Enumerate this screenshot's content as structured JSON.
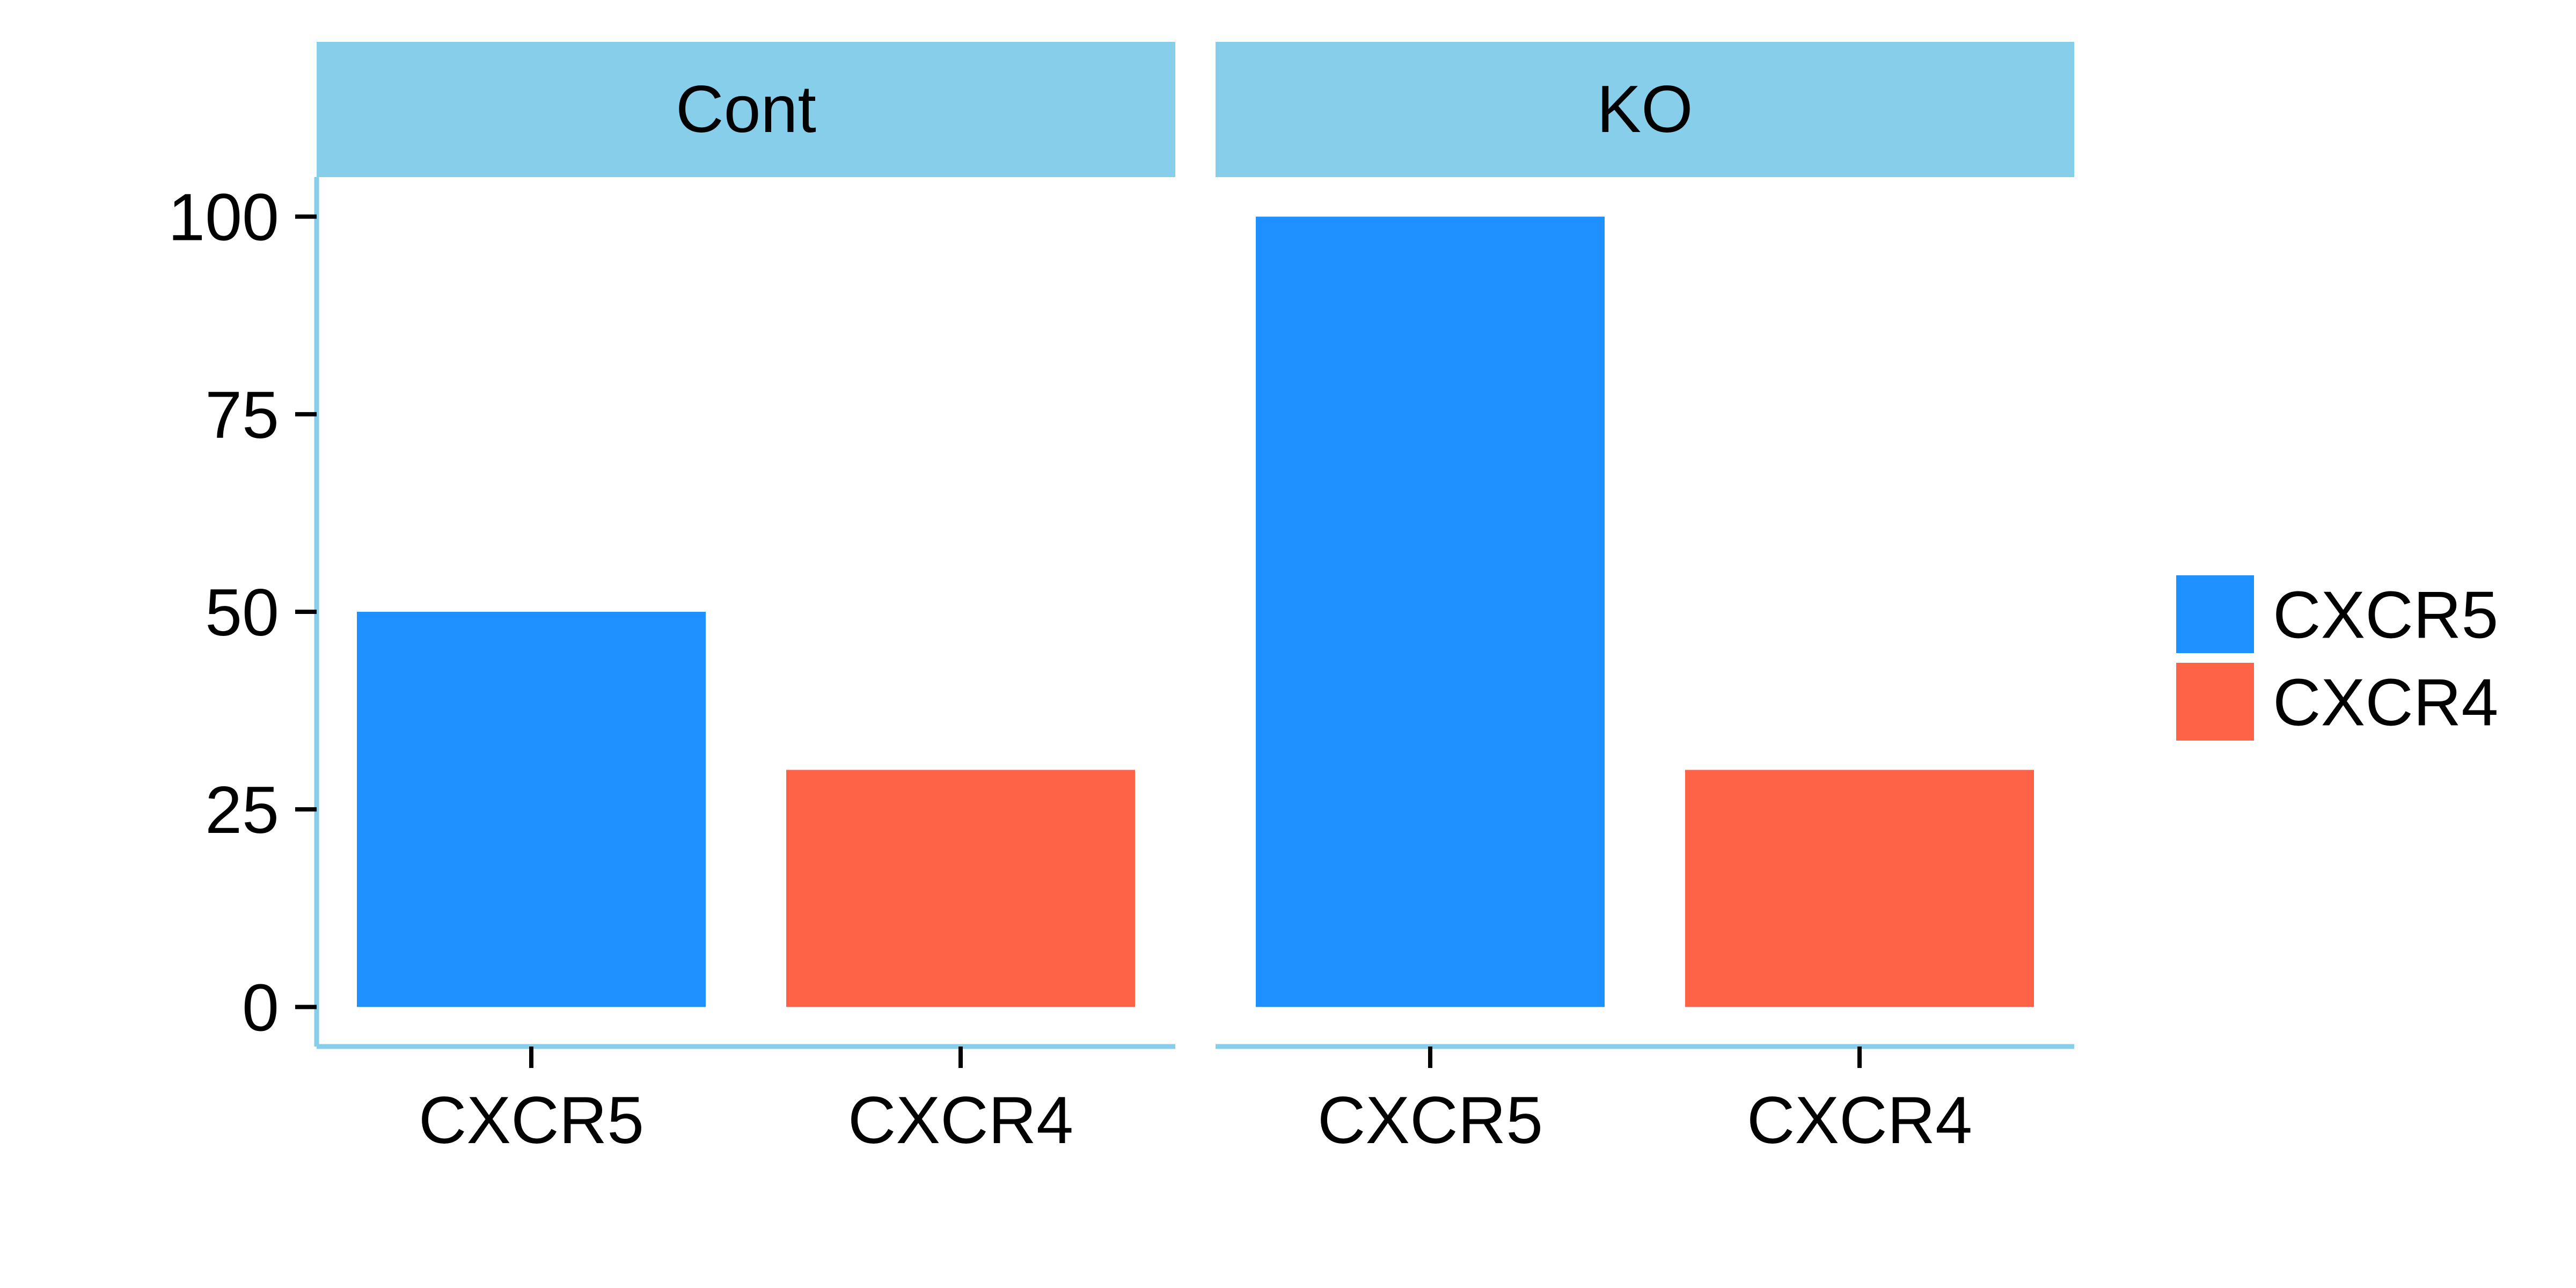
{
  "chart_data": {
    "type": "bar",
    "facets": [
      {
        "label": "Cont",
        "categories": [
          "CXCR5",
          "CXCR4"
        ],
        "values": [
          50,
          30
        ]
      },
      {
        "label": "KO",
        "categories": [
          "CXCR5",
          "CXCR4"
        ],
        "values": [
          100,
          30
        ]
      }
    ],
    "series": [
      {
        "name": "CXCR5",
        "color": "#1E90FF"
      },
      {
        "name": "CXCR4",
        "color": "#FF6347"
      }
    ],
    "ylim": [
      -5,
      105
    ],
    "yticks": [
      0,
      25,
      50,
      75,
      100
    ],
    "grid": false,
    "legend_position": "right",
    "strip_color": "#87CEEB",
    "axis_color": "#87CEEB"
  }
}
